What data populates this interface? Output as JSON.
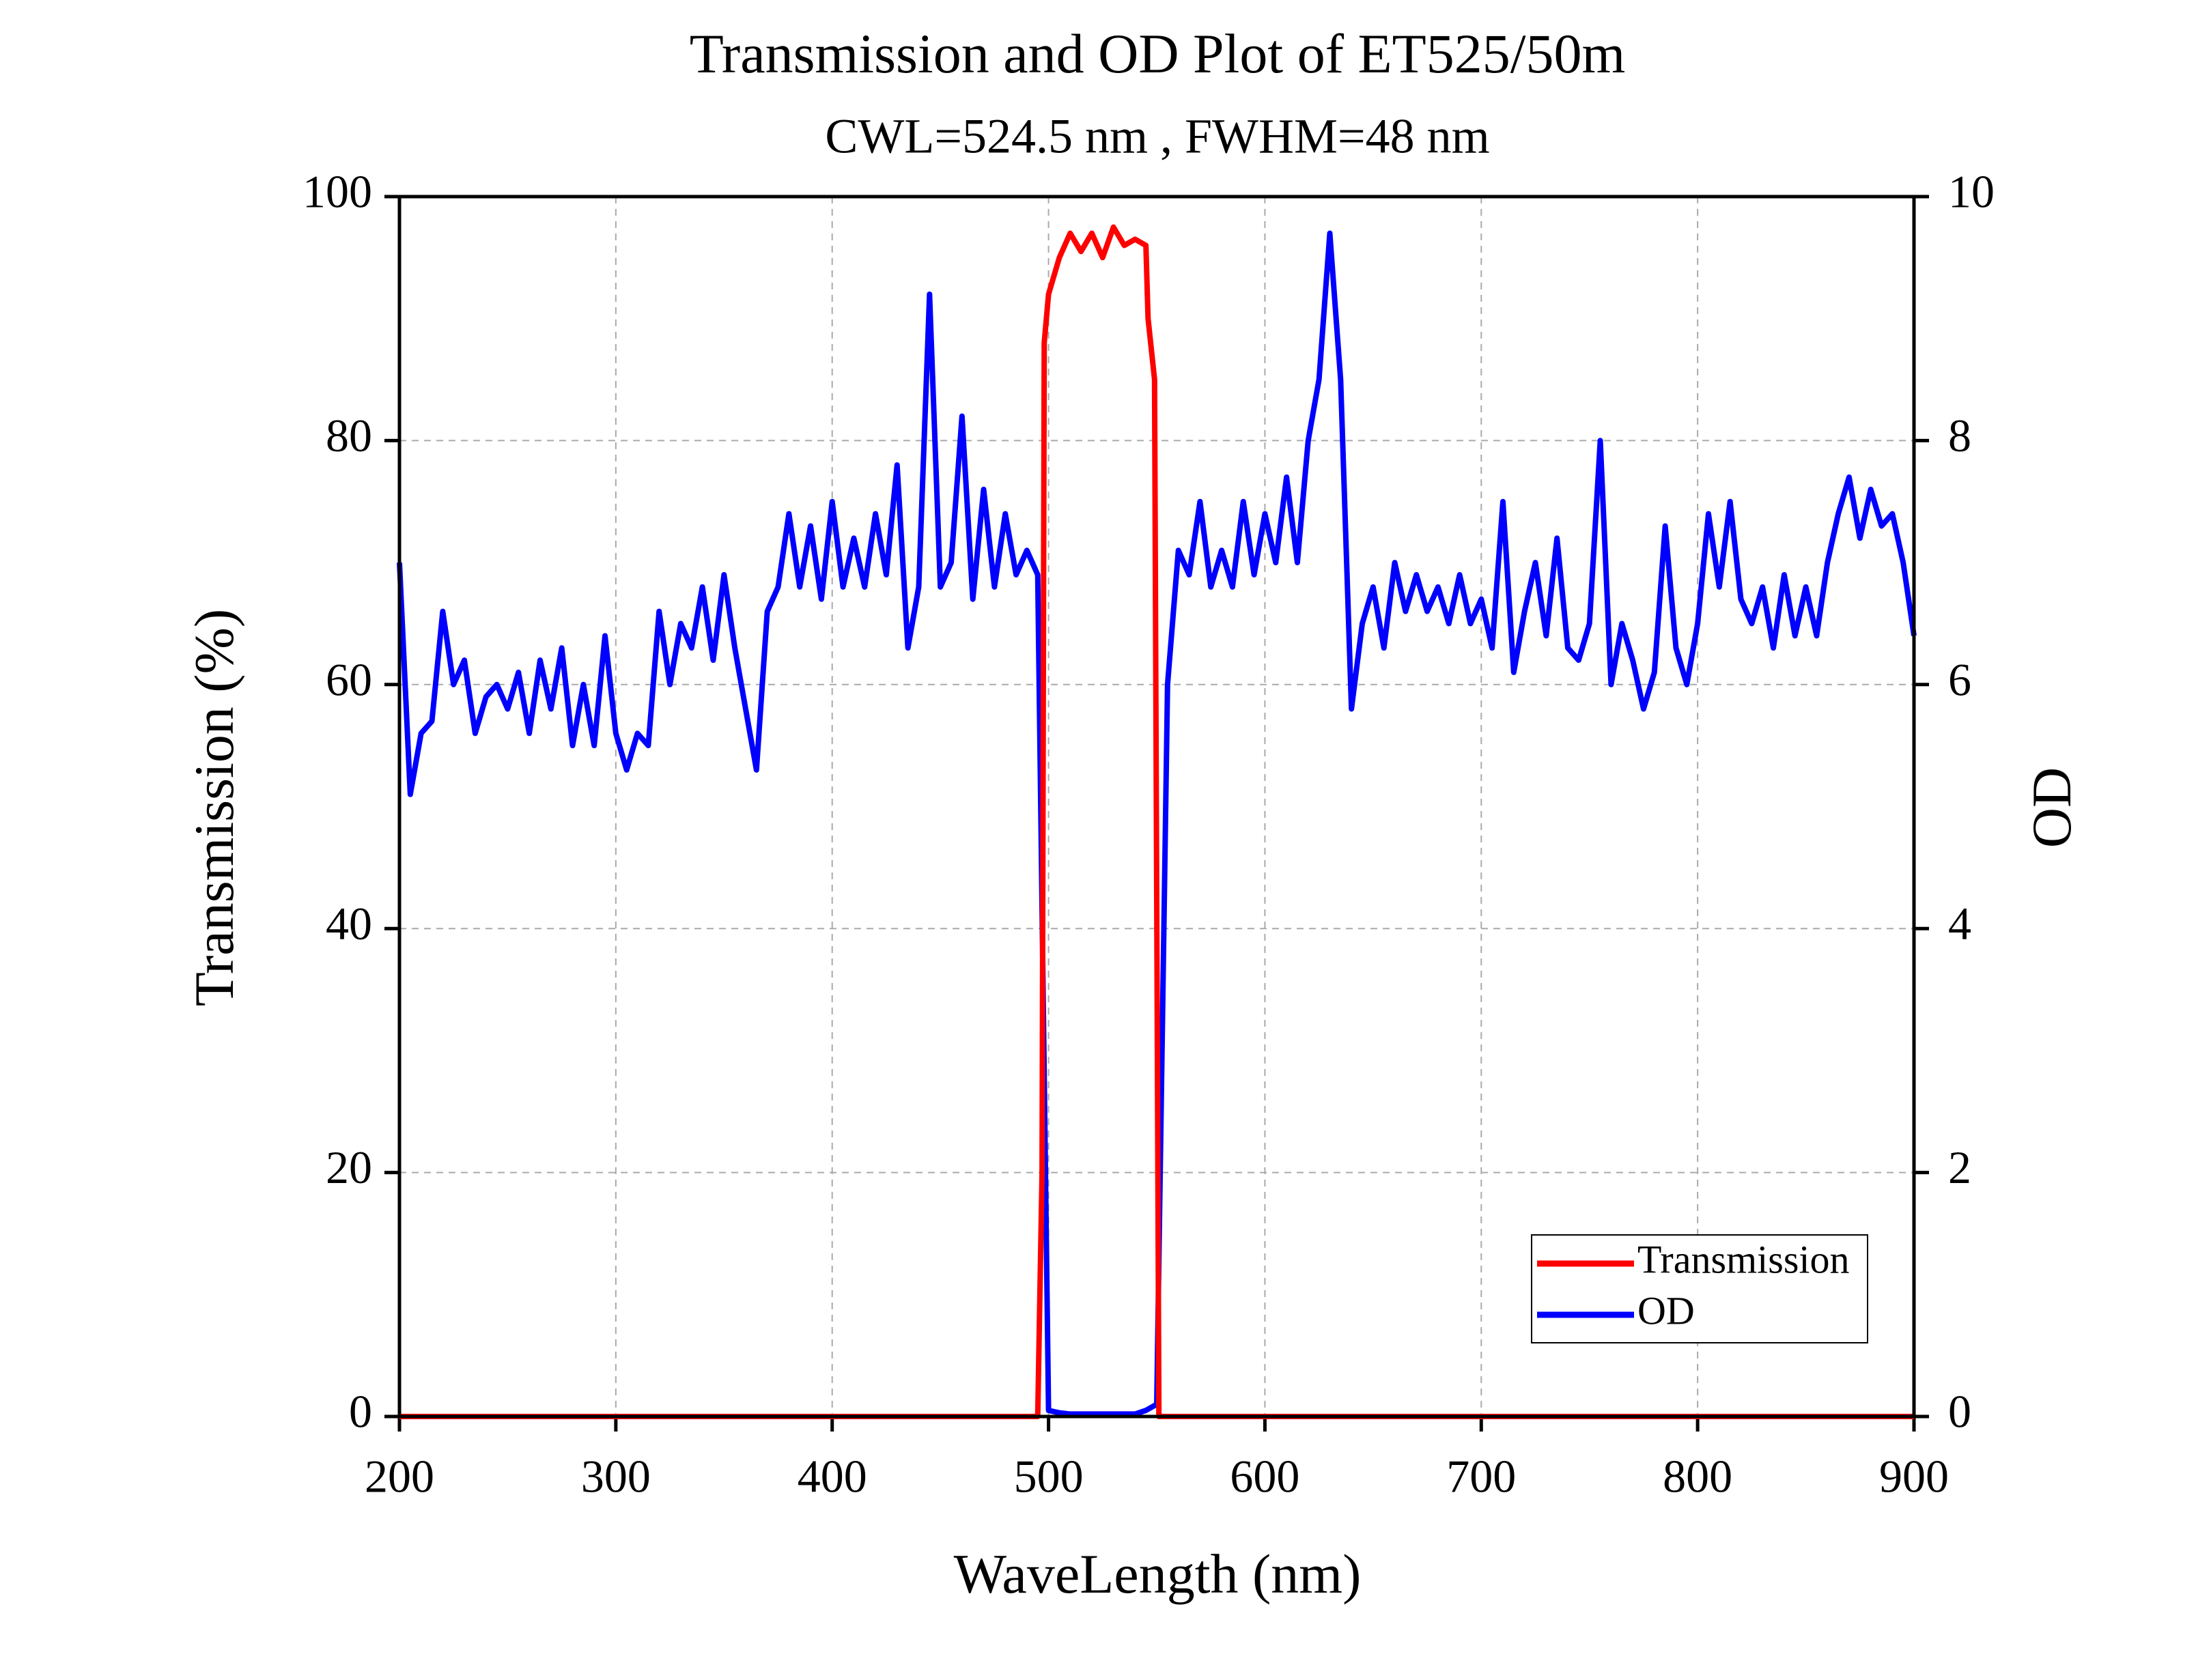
{
  "chart_data": {
    "type": "line",
    "title": "Transmission and OD Plot of ET525/50m",
    "subtitle": "CWL=524.5 nm , FWHM=48 nm",
    "x_label": "WaveLength (nm)",
    "y_label": "Transmission (%)",
    "y2_label": "OD",
    "xlim": [
      200,
      900
    ],
    "xticks": [
      200,
      300,
      400,
      500,
      600,
      700,
      800,
      900
    ],
    "ylim": [
      0,
      100
    ],
    "yticks": [
      0,
      20,
      40,
      60,
      80,
      100
    ],
    "y2lim": [
      0,
      10
    ],
    "y2ticks": [
      0,
      2,
      4,
      6,
      8,
      10
    ],
    "grid": true,
    "legend": "lower right",
    "series": [
      {
        "name": "Transmission",
        "color": "#ff0000",
        "x": [
          200,
          495,
          497,
          498,
          500,
          505,
          510,
          515,
          520,
          525,
          530,
          535,
          540,
          545,
          546,
          549,
          551,
          900
        ],
        "values": [
          0,
          0,
          20,
          88,
          92,
          95,
          97,
          95.5,
          97,
          95,
          97.5,
          96,
          96.5,
          96,
          90,
          85,
          0,
          0
        ]
      },
      {
        "name": "OD",
        "color": "#0000ff",
        "axis": "y2",
        "x": [
          200,
          205,
          210,
          215,
          220,
          225,
          230,
          235,
          240,
          245,
          250,
          255,
          260,
          265,
          270,
          275,
          280,
          285,
          290,
          295,
          300,
          305,
          310,
          315,
          320,
          325,
          330,
          335,
          340,
          345,
          350,
          355,
          360,
          365,
          370,
          375,
          380,
          385,
          390,
          395,
          400,
          405,
          410,
          415,
          420,
          425,
          430,
          435,
          440,
          445,
          450,
          455,
          460,
          465,
          470,
          475,
          480,
          485,
          490,
          495,
          500,
          505,
          510,
          515,
          520,
          525,
          530,
          535,
          540,
          545,
          550,
          555,
          560,
          565,
          570,
          575,
          580,
          585,
          590,
          595,
          600,
          605,
          610,
          615,
          620,
          625,
          630,
          635,
          640,
          645,
          650,
          655,
          660,
          665,
          670,
          675,
          680,
          685,
          690,
          695,
          700,
          705,
          710,
          715,
          720,
          725,
          730,
          735,
          740,
          745,
          750,
          755,
          760,
          765,
          770,
          775,
          780,
          785,
          790,
          795,
          800,
          805,
          810,
          815,
          820,
          825,
          830,
          835,
          840,
          845,
          850,
          855,
          860,
          865,
          870,
          875,
          880,
          885,
          890,
          895,
          900
        ],
        "values": [
          7.0,
          5.1,
          5.6,
          5.7,
          6.6,
          6.0,
          6.2,
          5.6,
          5.9,
          6.0,
          5.8,
          6.1,
          5.6,
          6.2,
          5.8,
          6.3,
          5.5,
          6.0,
          5.5,
          6.4,
          5.6,
          5.3,
          5.6,
          5.5,
          6.6,
          6.0,
          6.5,
          6.3,
          6.8,
          6.2,
          6.9,
          6.3,
          5.8,
          5.3,
          6.6,
          6.8,
          7.4,
          6.8,
          7.3,
          6.7,
          7.5,
          6.8,
          7.2,
          6.8,
          7.4,
          6.9,
          7.8,
          6.3,
          6.8,
          9.2,
          6.8,
          7.0,
          8.2,
          6.7,
          7.6,
          6.8,
          7.4,
          6.9,
          7.1,
          6.9,
          0.05,
          0.03,
          0.02,
          0.02,
          0.02,
          0.02,
          0.02,
          0.02,
          0.02,
          0.05,
          0.1,
          6.0,
          7.1,
          6.9,
          7.5,
          6.8,
          7.1,
          6.8,
          7.5,
          6.9,
          7.4,
          7.0,
          7.7,
          7.0,
          8.0,
          8.5,
          9.7,
          8.5,
          5.8,
          6.5,
          6.8,
          6.3,
          7.0,
          6.6,
          6.9,
          6.6,
          6.8,
          6.5,
          6.9,
          6.5,
          6.7,
          6.3,
          7.5,
          6.1,
          6.6,
          7.0,
          6.4,
          7.2,
          6.3,
          6.2,
          6.5,
          8.0,
          6.0,
          6.5,
          6.2,
          5.8,
          6.1,
          7.3,
          6.3,
          6.0,
          6.5,
          7.4,
          6.8,
          7.5,
          6.7,
          6.5,
          6.8,
          6.3,
          6.9,
          6.4,
          6.8,
          6.4,
          7.0,
          7.4,
          7.7,
          7.2,
          7.6,
          7.3,
          7.4,
          7.0,
          6.4
        ]
      }
    ]
  }
}
